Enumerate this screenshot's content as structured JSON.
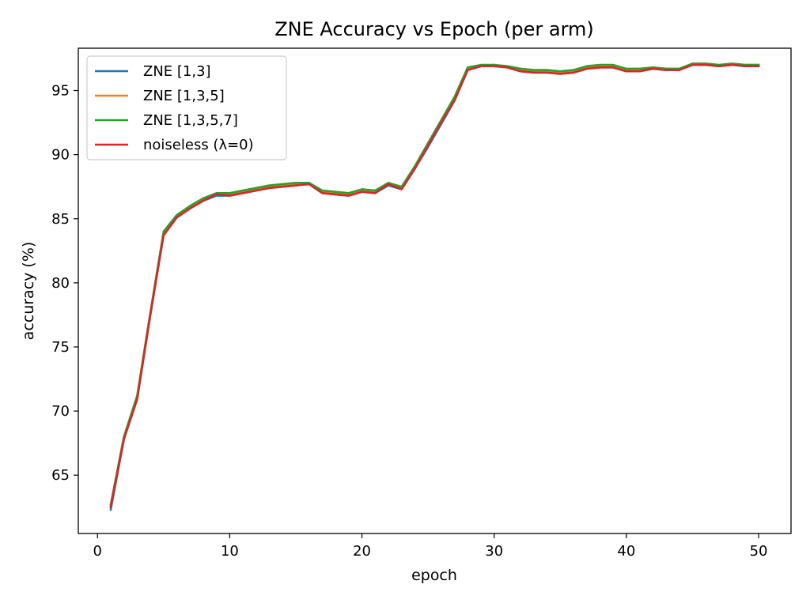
{
  "chart_data": {
    "type": "line",
    "title": "ZNE Accuracy vs Epoch (per arm)",
    "xlabel": "epoch",
    "ylabel": "accuracy (%)",
    "xlim": [
      -1.45,
      52.45
    ],
    "ylim": [
      60.45,
      98.3
    ],
    "xticks": [
      0,
      10,
      20,
      30,
      40,
      50
    ],
    "yticks": [
      65,
      70,
      75,
      80,
      85,
      90,
      95
    ],
    "grid": false,
    "legend_position": "upper-left",
    "x": [
      1,
      2,
      3,
      4,
      5,
      6,
      7,
      8,
      9,
      10,
      11,
      12,
      13,
      14,
      15,
      16,
      17,
      18,
      19,
      20,
      21,
      22,
      23,
      24,
      25,
      26,
      27,
      28,
      29,
      30,
      31,
      32,
      33,
      34,
      35,
      36,
      37,
      38,
      39,
      40,
      41,
      42,
      43,
      44,
      45,
      46,
      47,
      48,
      49,
      50
    ],
    "series": [
      {
        "name": "ZNE [1,3]",
        "color": "#1f77b4",
        "values": [
          62.3,
          67.8,
          71.0,
          77.5,
          83.8,
          85.1,
          85.8,
          86.4,
          86.8,
          86.8,
          87.0,
          87.2,
          87.4,
          87.5,
          87.6,
          87.7,
          87.0,
          86.9,
          86.8,
          87.1,
          87.0,
          87.6,
          87.3,
          88.9,
          90.6,
          92.4,
          94.2,
          96.6,
          96.9,
          96.9,
          96.8,
          96.5,
          96.4,
          96.4,
          96.3,
          96.4,
          96.7,
          96.8,
          96.8,
          96.5,
          96.5,
          96.7,
          96.6,
          96.6,
          97.0,
          97.0,
          96.9,
          97.0,
          96.9,
          96.9
        ]
      },
      {
        "name": "ZNE [1,3,5]",
        "color": "#ff7f0e",
        "values": [
          62.6,
          67.9,
          71.1,
          77.6,
          83.9,
          85.2,
          85.9,
          86.5,
          86.9,
          86.9,
          87.1,
          87.3,
          87.5,
          87.6,
          87.7,
          87.8,
          87.1,
          87.0,
          86.9,
          87.2,
          87.1,
          87.8,
          87.4,
          89.0,
          90.8,
          92.6,
          94.4,
          96.7,
          96.9,
          97.0,
          96.8,
          96.6,
          96.5,
          96.5,
          96.4,
          96.5,
          96.8,
          96.9,
          96.9,
          96.6,
          96.6,
          96.8,
          96.7,
          96.7,
          97.0,
          97.0,
          96.9,
          97.0,
          97.0,
          97.0
        ]
      },
      {
        "name": "ZNE [1,3,5,7]",
        "color": "#2ca02c",
        "values": [
          62.7,
          68.0,
          71.2,
          77.7,
          84.0,
          85.3,
          86.0,
          86.6,
          87.0,
          87.0,
          87.2,
          87.4,
          87.6,
          87.7,
          87.8,
          87.8,
          87.2,
          87.1,
          87.0,
          87.3,
          87.2,
          87.8,
          87.5,
          89.1,
          90.9,
          92.7,
          94.5,
          96.8,
          97.0,
          97.0,
          96.9,
          96.7,
          96.6,
          96.6,
          96.5,
          96.6,
          96.9,
          97.0,
          97.0,
          96.7,
          96.7,
          96.8,
          96.7,
          96.7,
          97.1,
          97.1,
          97.0,
          97.1,
          97.0,
          97.0
        ]
      },
      {
        "name": "noiseless (λ=0)",
        "color": "#d62728",
        "values": [
          62.5,
          67.8,
          70.9,
          77.5,
          83.7,
          85.1,
          85.8,
          86.4,
          86.9,
          86.8,
          87.0,
          87.2,
          87.4,
          87.5,
          87.6,
          87.7,
          87.0,
          86.9,
          86.8,
          87.1,
          87.0,
          87.7,
          87.3,
          88.9,
          90.7,
          92.5,
          94.2,
          96.6,
          96.9,
          96.9,
          96.8,
          96.5,
          96.4,
          96.4,
          96.3,
          96.4,
          96.7,
          96.8,
          96.8,
          96.5,
          96.5,
          96.7,
          96.6,
          96.6,
          97.0,
          97.0,
          96.9,
          97.0,
          96.9,
          96.9
        ]
      }
    ]
  }
}
